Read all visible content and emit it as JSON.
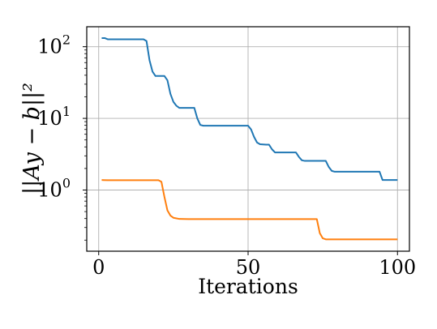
{
  "chart_data": {
    "type": "line",
    "title": "",
    "xlabel": "Iterations",
    "ylabel": "||Ay − b||²",
    "yscale": "log",
    "xlim": [
      -4,
      104
    ],
    "ylim": [
      0.14,
      190
    ],
    "xticks": [
      0,
      50,
      100
    ],
    "xtick_labels": [
      "0",
      "50",
      "100"
    ],
    "yticks": [
      1,
      10,
      100
    ],
    "ytick_labels": [
      "10",
      "10",
      "10"
    ],
    "ytick_exponents": [
      "0",
      "1",
      "2"
    ],
    "grid": true,
    "legend": false,
    "colors": {
      "series_1": "#1f77b4",
      "series_2": "#ff7f0e"
    },
    "series": [
      {
        "color": "#1f77b4",
        "points": [
          [
            1,
            132
          ],
          [
            2,
            132
          ],
          [
            3,
            127
          ],
          [
            15,
            127
          ],
          [
            16,
            120
          ],
          [
            17,
            65
          ],
          [
            18,
            45
          ],
          [
            19,
            39
          ],
          [
            22,
            39
          ],
          [
            23,
            34
          ],
          [
            24,
            22
          ],
          [
            25,
            17
          ],
          [
            26,
            15
          ],
          [
            27,
            14
          ],
          [
            32,
            14
          ],
          [
            33,
            10
          ],
          [
            34,
            8.1
          ],
          [
            35,
            7.9
          ],
          [
            50,
            7.9
          ],
          [
            51,
            7.0
          ],
          [
            52,
            5.5
          ],
          [
            53,
            4.6
          ],
          [
            54,
            4.35
          ],
          [
            56,
            4.3
          ],
          [
            57,
            4.3
          ],
          [
            58,
            3.7
          ],
          [
            59,
            3.35
          ],
          [
            66,
            3.35
          ],
          [
            67,
            2.9
          ],
          [
            68,
            2.6
          ],
          [
            69,
            2.55
          ],
          [
            76,
            2.55
          ],
          [
            77,
            2.1
          ],
          [
            78,
            1.85
          ],
          [
            79,
            1.8
          ],
          [
            94,
            1.8
          ],
          [
            95,
            1.38
          ],
          [
            100,
            1.38
          ]
        ]
      },
      {
        "color": "#ff7f0e",
        "points": [
          [
            1,
            1.38
          ],
          [
            3,
            1.37
          ],
          [
            20,
            1.37
          ],
          [
            21,
            1.3
          ],
          [
            22,
            0.8
          ],
          [
            23,
            0.52
          ],
          [
            24,
            0.44
          ],
          [
            25,
            0.41
          ],
          [
            27,
            0.395
          ],
          [
            30,
            0.393
          ],
          [
            73,
            0.393
          ],
          [
            74,
            0.25
          ],
          [
            75,
            0.212
          ],
          [
            76,
            0.205
          ],
          [
            100,
            0.205
          ]
        ]
      }
    ]
  }
}
